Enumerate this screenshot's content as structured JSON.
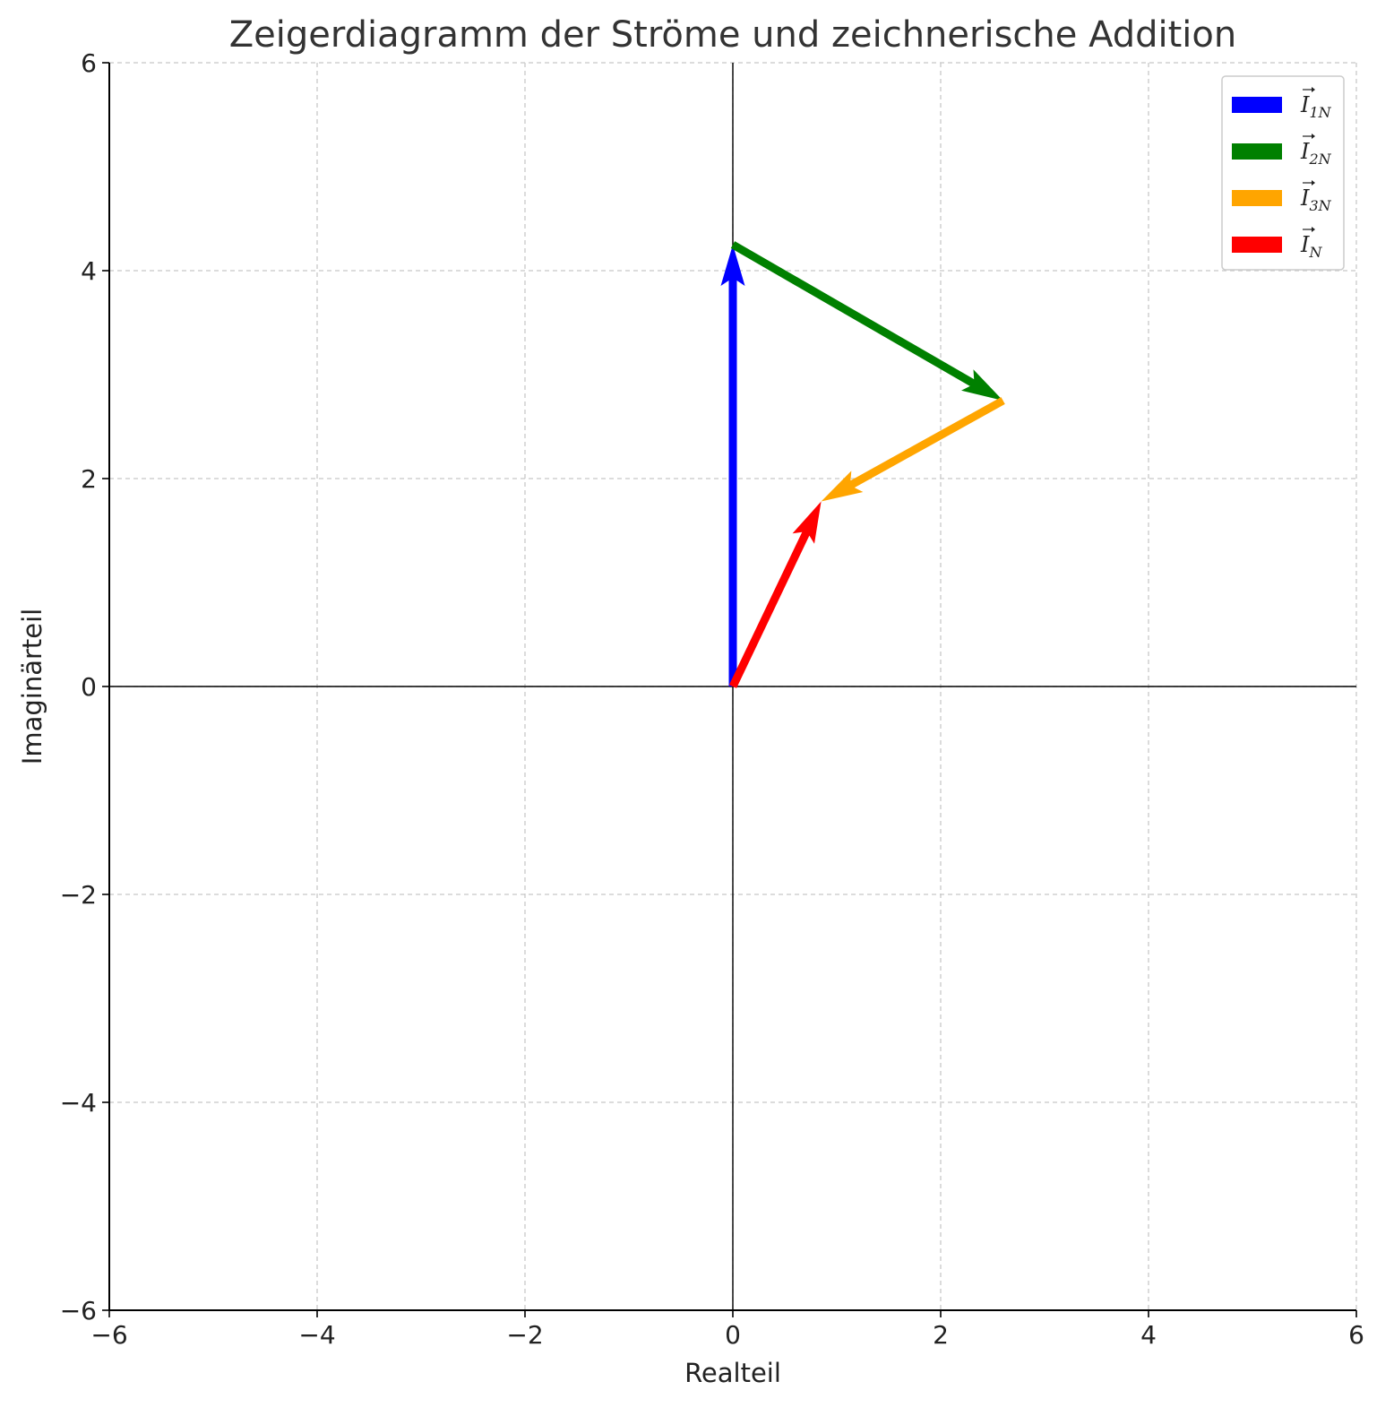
{
  "chart_data": {
    "type": "quiver",
    "title": "Zeigerdiagramm der Ströme und zeichnerische Addition",
    "xlabel": "Realteil",
    "ylabel": "Imaginärteil",
    "xlim": [
      -6,
      6
    ],
    "ylim": [
      -6,
      6
    ],
    "xticks": [
      -6,
      -4,
      -2,
      0,
      2,
      4,
      6
    ],
    "yticks": [
      -6,
      -4,
      -2,
      0,
      2,
      4,
      6
    ],
    "xtick_labels": [
      "−6",
      "−4",
      "−2",
      "0",
      "2",
      "4",
      "6"
    ],
    "ytick_labels": [
      "−6",
      "−4",
      "−2",
      "0",
      "2",
      "4",
      "6"
    ],
    "grid": true,
    "legend_position": "top-right",
    "series": [
      {
        "name": "I1N",
        "label_main": "I",
        "label_sub": "1N",
        "color": "#0000ff",
        "x0": 0,
        "y0": 0,
        "x1": 0,
        "y1": 4.25
      },
      {
        "name": "I2N",
        "label_main": "I",
        "label_sub": "2N",
        "color": "#008000",
        "x0": 0,
        "y0": 4.25,
        "x1": 2.6,
        "y1": 2.75
      },
      {
        "name": "I3N",
        "label_main": "I",
        "label_sub": "3N",
        "color": "#ffa500",
        "x0": 2.6,
        "y0": 2.75,
        "x1": 0.85,
        "y1": 1.78
      },
      {
        "name": "IN",
        "label_main": "I",
        "label_sub": "N",
        "color": "#ff0000",
        "x0": 0,
        "y0": 0,
        "x1": 0.85,
        "y1": 1.78
      }
    ]
  }
}
